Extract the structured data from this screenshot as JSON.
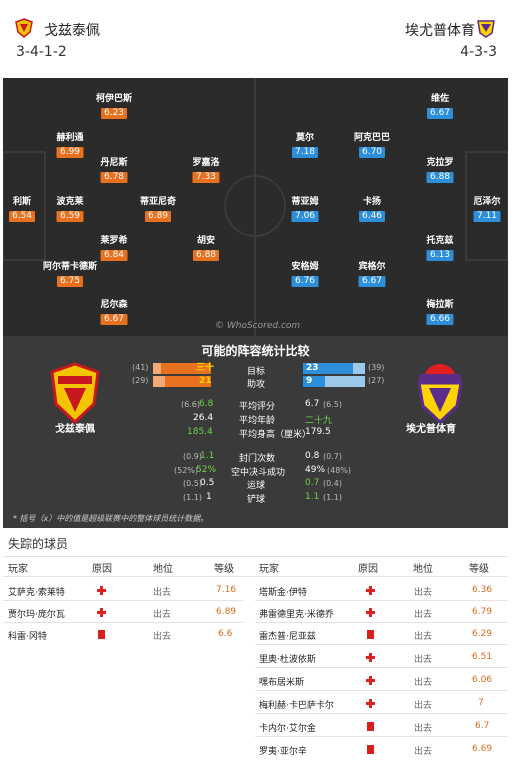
{
  "header": {
    "home_name": "戈兹泰佩",
    "away_name": "埃尤普体育",
    "home_formation": "3-4-1-2",
    "away_formation": "4-3-3"
  },
  "pitch": {
    "watermark": "© WhoScored.com",
    "home_players": [
      {
        "name": "柯伊巴斯",
        "rating": "6.23"
      },
      {
        "name": "赫利通",
        "rating": "6.99"
      },
      {
        "name": "丹尼斯",
        "rating": "6.78"
      },
      {
        "name": "罗嘉洛",
        "rating": "7.33"
      },
      {
        "name": "利斯",
        "rating": "6.54"
      },
      {
        "name": "波克莱",
        "rating": "6.59"
      },
      {
        "name": "蒂亚尼奇",
        "rating": "6.89"
      },
      {
        "name": "莱罗希",
        "rating": "6.84"
      },
      {
        "name": "胡安",
        "rating": "6.88"
      },
      {
        "name": "阿尔蒂卡德斯",
        "rating": "6.75"
      },
      {
        "name": "尼尔森",
        "rating": "6.67"
      }
    ],
    "away_players": [
      {
        "name": "维佐",
        "rating": "6.67"
      },
      {
        "name": "莫尔",
        "rating": "7.18"
      },
      {
        "name": "阿克巴巴",
        "rating": "6.70"
      },
      {
        "name": "克拉罗",
        "rating": "6.88"
      },
      {
        "name": "蒂亚姆",
        "rating": "7.06"
      },
      {
        "name": "卡扬",
        "rating": "6.46"
      },
      {
        "name": "厄泽尔",
        "rating": "7.11"
      },
      {
        "name": "托克兹",
        "rating": "6.13"
      },
      {
        "name": "安格姆",
        "rating": "6.76"
      },
      {
        "name": "宾格尔",
        "rating": "6.67"
      },
      {
        "name": "梅拉斯",
        "rating": "6.66"
      }
    ]
  },
  "stats": {
    "title": "可能的阵容统计比较",
    "home_label": "戈兹泰佩",
    "away_label": "埃尤普体育",
    "home_crest_text": "GÖZTEPE",
    "away_crest_text": "EYUPSPOR",
    "goals": {
      "label": "目标",
      "home_prev": "(41)",
      "home_val": "三十",
      "away_val": "23",
      "away_prev": "(39)"
    },
    "assists": {
      "label": "助攻",
      "home_prev": "(29)",
      "home_val": "21",
      "away_val": "9",
      "away_prev": "(27)"
    },
    "rating": {
      "label": "平均评分",
      "home_prev": "(6.6)",
      "home_val": "6.8",
      "away_val": "6.7",
      "away_prev": "(6.5)"
    },
    "age": {
      "label": "平均年龄",
      "home_val": "26.4",
      "away_val": "二十九"
    },
    "height": {
      "label": "平均身高（厘米）",
      "home_val": "185.4",
      "away_val": "179.5"
    },
    "shots_blocked": {
      "label": "封门次数",
      "home_prev": "(0.9)",
      "home_val": "1.1",
      "away_val": "0.8",
      "away_prev": "(0.7)"
    },
    "aerial": {
      "label": "空中决斗成功",
      "home_prev": "(52%)",
      "home_val": "52%",
      "away_val": "49%",
      "away_prev": "(48%)"
    },
    "dribbles": {
      "label": "运球",
      "home_prev": "(0.5)",
      "home_val": "0.5",
      "away_val": "0.7",
      "away_prev": "(0.4)"
    },
    "tackles": {
      "label": "铲球",
      "home_prev": "(1.1)",
      "home_val": "1",
      "away_val": "1.1",
      "away_prev": "(1.1)"
    },
    "note": "* 括号（x）中的值是超级联赛中的整体球员统计数据。"
  },
  "missing": {
    "title": "失踪的球员",
    "headers": {
      "player": "玩家",
      "reason": "原因",
      "status": "地位",
      "rating": "等级"
    },
    "home": [
      {
        "player": "艾萨克·索莱特",
        "reason": "injury",
        "status": "出去",
        "rating": "7.16"
      },
      {
        "player": "贾尔玛·庞尔瓦",
        "reason": "injury",
        "status": "出去",
        "rating": "6.89"
      },
      {
        "player": "科雷·冈特",
        "reason": "card",
        "status": "出去",
        "rating": "6.6"
      }
    ],
    "away": [
      {
        "player": "塔斯金·伊特",
        "reason": "injury",
        "status": "出去",
        "rating": "6.36"
      },
      {
        "player": "弗雷德里克·米德乔",
        "reason": "injury",
        "status": "出去",
        "rating": "6.79"
      },
      {
        "player": "雷杰普·尼亚兹",
        "reason": "card",
        "status": "出去",
        "rating": "6.29"
      },
      {
        "player": "里奥·杜波依斯",
        "reason": "injury",
        "status": "出去",
        "rating": "6.51"
      },
      {
        "player": "嘿布居米斯",
        "reason": "injury",
        "status": "出去",
        "rating": "6.06"
      },
      {
        "player": "梅利赫·卡巴萨卡尔",
        "reason": "injury",
        "status": "出去",
        "rating": "7"
      },
      {
        "player": "卡内尔·艾尔金",
        "reason": "card",
        "status": "出去",
        "rating": "6.7"
      },
      {
        "player": "罗夷·亚尔辛",
        "reason": "card",
        "status": "出去",
        "rating": "6.69"
      }
    ]
  },
  "colors": {
    "home": "#e8711f",
    "away": "#2d8fd9",
    "pitch": "#2b2b2b"
  }
}
